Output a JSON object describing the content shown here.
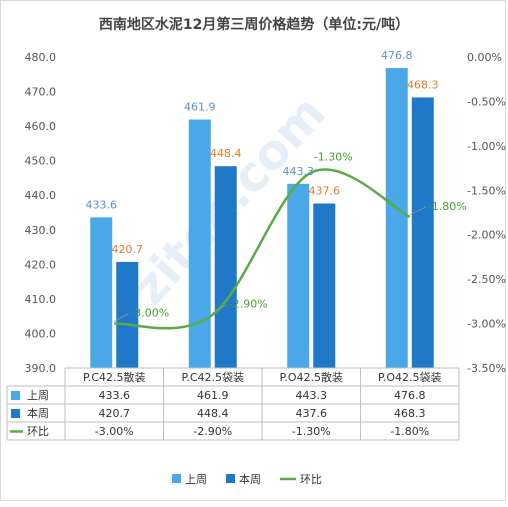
{
  "chart_data": {
    "type": "bar",
    "title": "西南地区水泥12月第三周价格趋势（单位:元/吨）",
    "categories": [
      "P.C42.5散装",
      "P.C42.5袋装",
      "P.O42.5散装",
      "P.O42.5袋装"
    ],
    "series": [
      {
        "name": "上周",
        "type": "bar",
        "axis": "left",
        "color": "#4aa8e8",
        "label_color": "#5a8fd6",
        "values": [
          433.6,
          461.9,
          443.3,
          476.8
        ],
        "labels": [
          "433.6",
          "461.9",
          "443.3",
          "476.8"
        ]
      },
      {
        "name": "本周",
        "type": "bar",
        "axis": "left",
        "color": "#1f78c8",
        "label_color": "#e07b22",
        "values": [
          420.7,
          448.4,
          437.6,
          468.3
        ],
        "labels": [
          "420.7",
          "448.4",
          "437.6",
          "468.3"
        ]
      },
      {
        "name": "环比",
        "type": "line",
        "axis": "right",
        "color": "#5aaa46",
        "label_color": "#4a9a3a",
        "values": [
          -3.0,
          -2.9,
          -1.3,
          -1.8
        ],
        "labels": [
          "-3.00%",
          "-2.90%",
          "-1.30%",
          "-1.80%"
        ]
      }
    ],
    "y_left": {
      "min": 390,
      "max": 480,
      "step": 10,
      "tick_labels": [
        "390.0",
        "400.0",
        "410.0",
        "420.0",
        "430.0",
        "440.0",
        "450.0",
        "460.0",
        "470.0",
        "480.0"
      ]
    },
    "y_right": {
      "min": -3.5,
      "max": 0,
      "step": 0.5,
      "tick_labels": [
        "-3.50%",
        "-3.00%",
        "-2.50%",
        "-2.00%",
        "-1.50%",
        "-1.00%",
        "-0.50%",
        "0.00%"
      ]
    },
    "data_table": {
      "rows": [
        {
          "name": "上周",
          "cells": [
            "433.6",
            "461.9",
            "443.3",
            "476.8"
          ]
        },
        {
          "name": "本周",
          "cells": [
            "420.7",
            "448.4",
            "437.6",
            "468.3"
          ]
        },
        {
          "name": "环比",
          "cells": [
            "-3.00%",
            "-2.90%",
            "-1.30%",
            "-1.80%"
          ]
        }
      ]
    },
    "legend": {
      "position": "bottom",
      "items": [
        "上周",
        "本周",
        "环比"
      ]
    },
    "watermark": "zitcn.com",
    "grid": false
  }
}
